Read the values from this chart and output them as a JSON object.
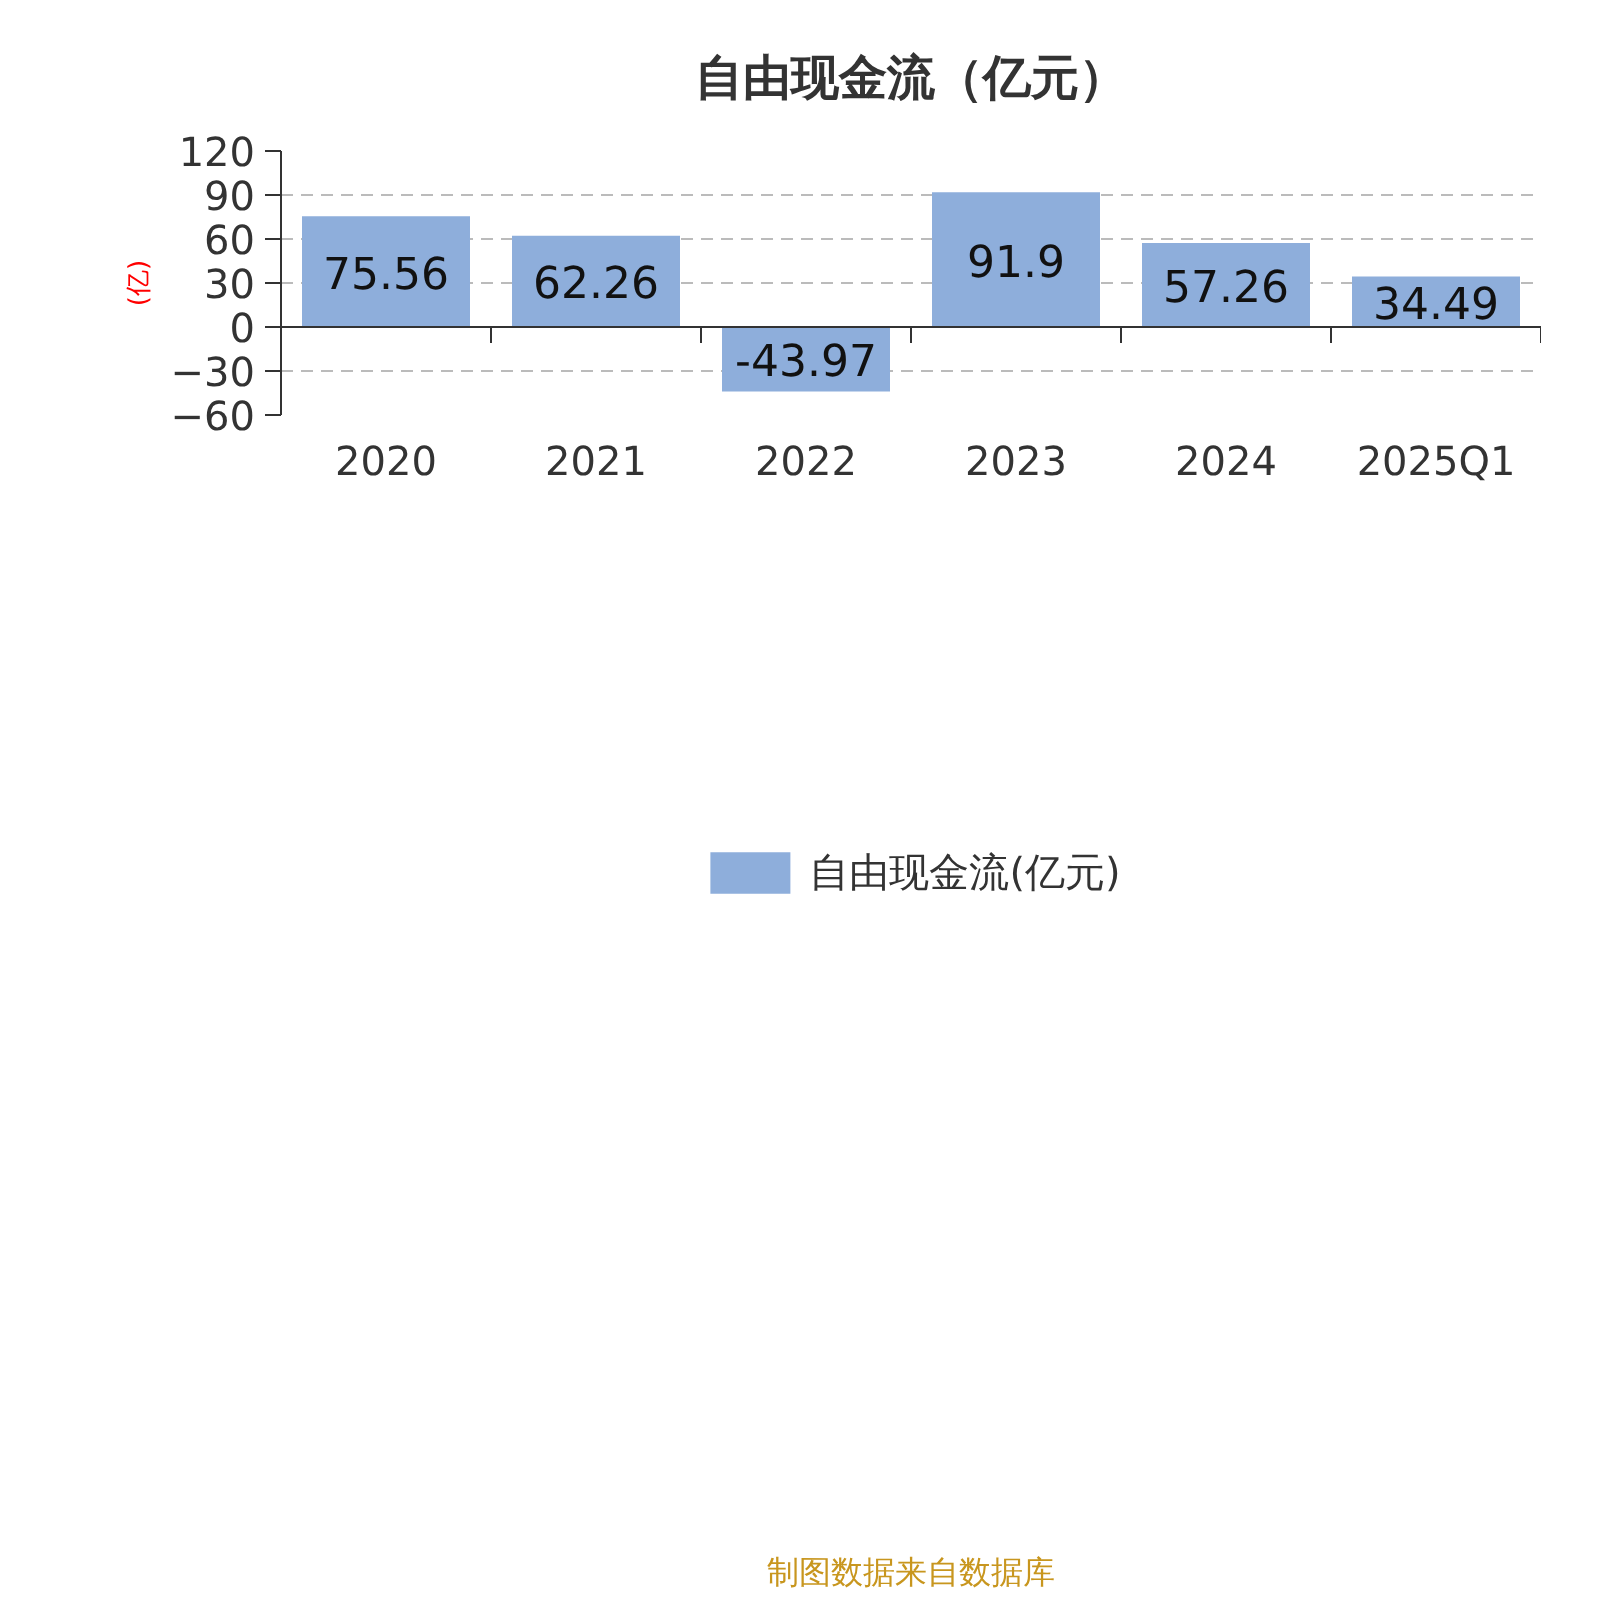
{
  "chart_data": {
    "type": "bar",
    "title": "自由现金流（亿元）",
    "ylabel": "(亿)",
    "categories": [
      "2020",
      "2021",
      "2022",
      "2023",
      "2024",
      "2025Q1"
    ],
    "series": [
      {
        "name": "自由现金流(亿元)",
        "color": "#8eaedb",
        "values": [
          75.56,
          62.26,
          -43.97,
          91.9,
          57.26,
          34.49
        ]
      }
    ],
    "ylim": [
      -60,
      120
    ],
    "yticks": [
      -60,
      -30,
      0,
      30,
      60,
      90,
      120
    ],
    "grid": "y",
    "legend": "bottom",
    "data_labels": true,
    "annotations": [
      "制图数据来自数据库"
    ]
  }
}
